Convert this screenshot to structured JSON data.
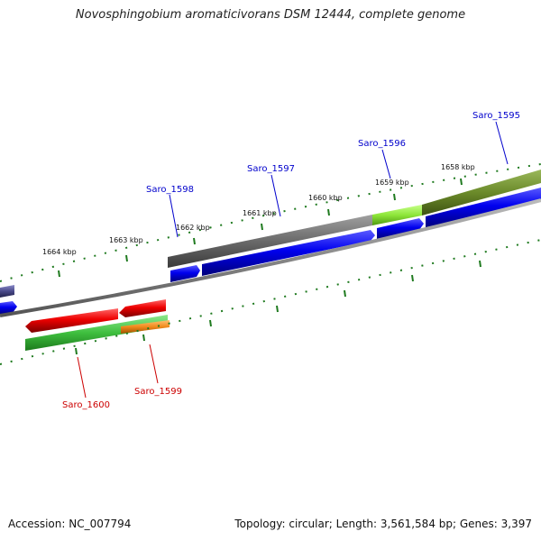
{
  "title": "Novosphingobium aromaticivorans DSM 12444, complete genome",
  "footer": {
    "accession": "Accession: NC_007794",
    "summary": "Topology: circular; Length: 3,561,584 bp; Genes: 3,397"
  },
  "kbp_labels": [
    "1658 kbp",
    "1659 kbp",
    "1660 kbp",
    "1661 kbp",
    "1662 kbp",
    "1663 kbp",
    "1664 kbp"
  ],
  "genes_forward": [
    {
      "name": "Saro_1595",
      "color": "#0000cc"
    },
    {
      "name": "Saro_1596",
      "color": "#0000cc"
    },
    {
      "name": "Saro_1597",
      "color": "#0000cc"
    },
    {
      "name": "Saro_1598",
      "color": "#0000cc"
    }
  ],
  "genes_reverse": [
    {
      "name": "Saro_1599",
      "color": "#cc0000"
    },
    {
      "name": "Saro_1600",
      "color": "#cc0000"
    }
  ],
  "colors": {
    "forward_gene": "#0000ee",
    "reverse_gene": "#ee0000",
    "backbone": "#888888",
    "tick": "#1f7a1f",
    "cog_gray": "#707070",
    "cog_lime": "#8ee63a",
    "cog_olive": "#6b8a2a",
    "cog_green": "#3fbf3f",
    "cog_orange": "#f08a1c",
    "cog_purple": "#4a4a8a"
  }
}
